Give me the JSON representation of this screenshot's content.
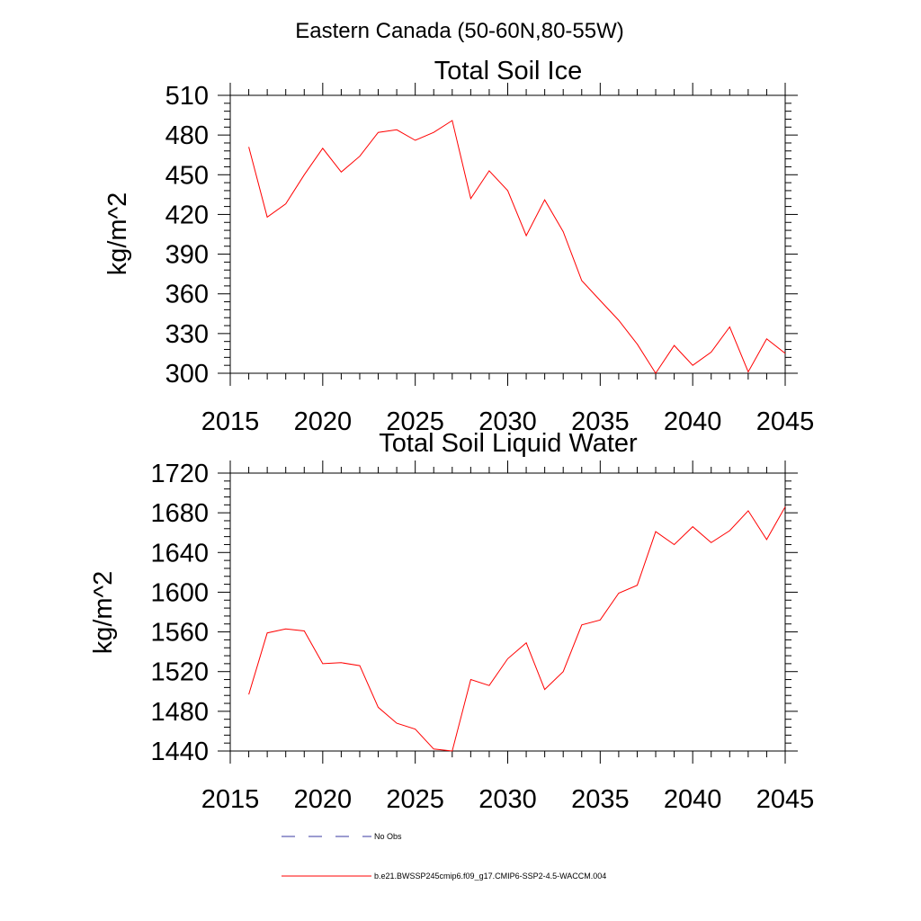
{
  "figure": {
    "title": "Eastern Canada (50-60N,80-55W)"
  },
  "legend": {
    "entries": [
      {
        "label": "No Obs",
        "color": "#3a3aa0",
        "dash": "dashed"
      },
      {
        "label": "b.e21.BWSSP245cmip6.f09_g17.CMIP6-SSP2-4.5-WACCM.004",
        "color": "#ff0000",
        "dash": "solid"
      }
    ],
    "placement": "bottom"
  },
  "chart_data": [
    {
      "type": "line",
      "title": "Total Soil Ice",
      "xlabel": "",
      "ylabel": "kg/m^2",
      "xlim": [
        2015,
        2045
      ],
      "ylim": [
        300,
        510
      ],
      "xticks": [
        2015,
        2020,
        2025,
        2030,
        2035,
        2040,
        2045
      ],
      "yticks": [
        300,
        330,
        360,
        390,
        420,
        450,
        480,
        510
      ],
      "grid": false,
      "series": [
        {
          "color": "#ff0000",
          "x": [
            2016,
            2017,
            2018,
            2019,
            2020,
            2021,
            2022,
            2023,
            2024,
            2025,
            2026,
            2027,
            2028,
            2029,
            2030,
            2031,
            2032,
            2033,
            2034,
            2035,
            2036,
            2037,
            2038,
            2039,
            2040,
            2041,
            2042,
            2043,
            2044,
            2045
          ],
          "values": [
            471,
            418,
            428,
            450,
            470,
            452,
            464,
            482,
            484,
            476,
            482,
            491,
            432,
            453,
            438,
            404,
            431,
            407,
            370,
            355,
            340,
            322,
            300,
            321,
            306,
            316,
            335,
            301,
            326,
            315
          ]
        }
      ]
    },
    {
      "type": "line",
      "title": "Total Soil Liquid Water",
      "xlabel": "",
      "ylabel": "kg/m^2",
      "xlim": [
        2015,
        2045
      ],
      "ylim": [
        1440,
        1720
      ],
      "xticks": [
        2015,
        2020,
        2025,
        2030,
        2035,
        2040,
        2045
      ],
      "yticks": [
        1440,
        1480,
        1520,
        1560,
        1600,
        1640,
        1680,
        1720
      ],
      "grid": false,
      "series": [
        {
          "color": "#ff0000",
          "x": [
            2016,
            2017,
            2018,
            2019,
            2020,
            2021,
            2022,
            2023,
            2024,
            2025,
            2026,
            2027,
            2028,
            2029,
            2030,
            2031,
            2032,
            2033,
            2034,
            2035,
            2036,
            2037,
            2038,
            2039,
            2040,
            2041,
            2042,
            2043,
            2044,
            2045
          ],
          "values": [
            1497,
            1559,
            1563,
            1561,
            1528,
            1529,
            1526,
            1484,
            1468,
            1462,
            1442,
            1440,
            1512,
            1506,
            1533,
            1549,
            1502,
            1520,
            1567,
            1572,
            1599,
            1607,
            1661,
            1648,
            1666,
            1650,
            1662,
            1682,
            1653,
            1686
          ]
        }
      ]
    }
  ]
}
